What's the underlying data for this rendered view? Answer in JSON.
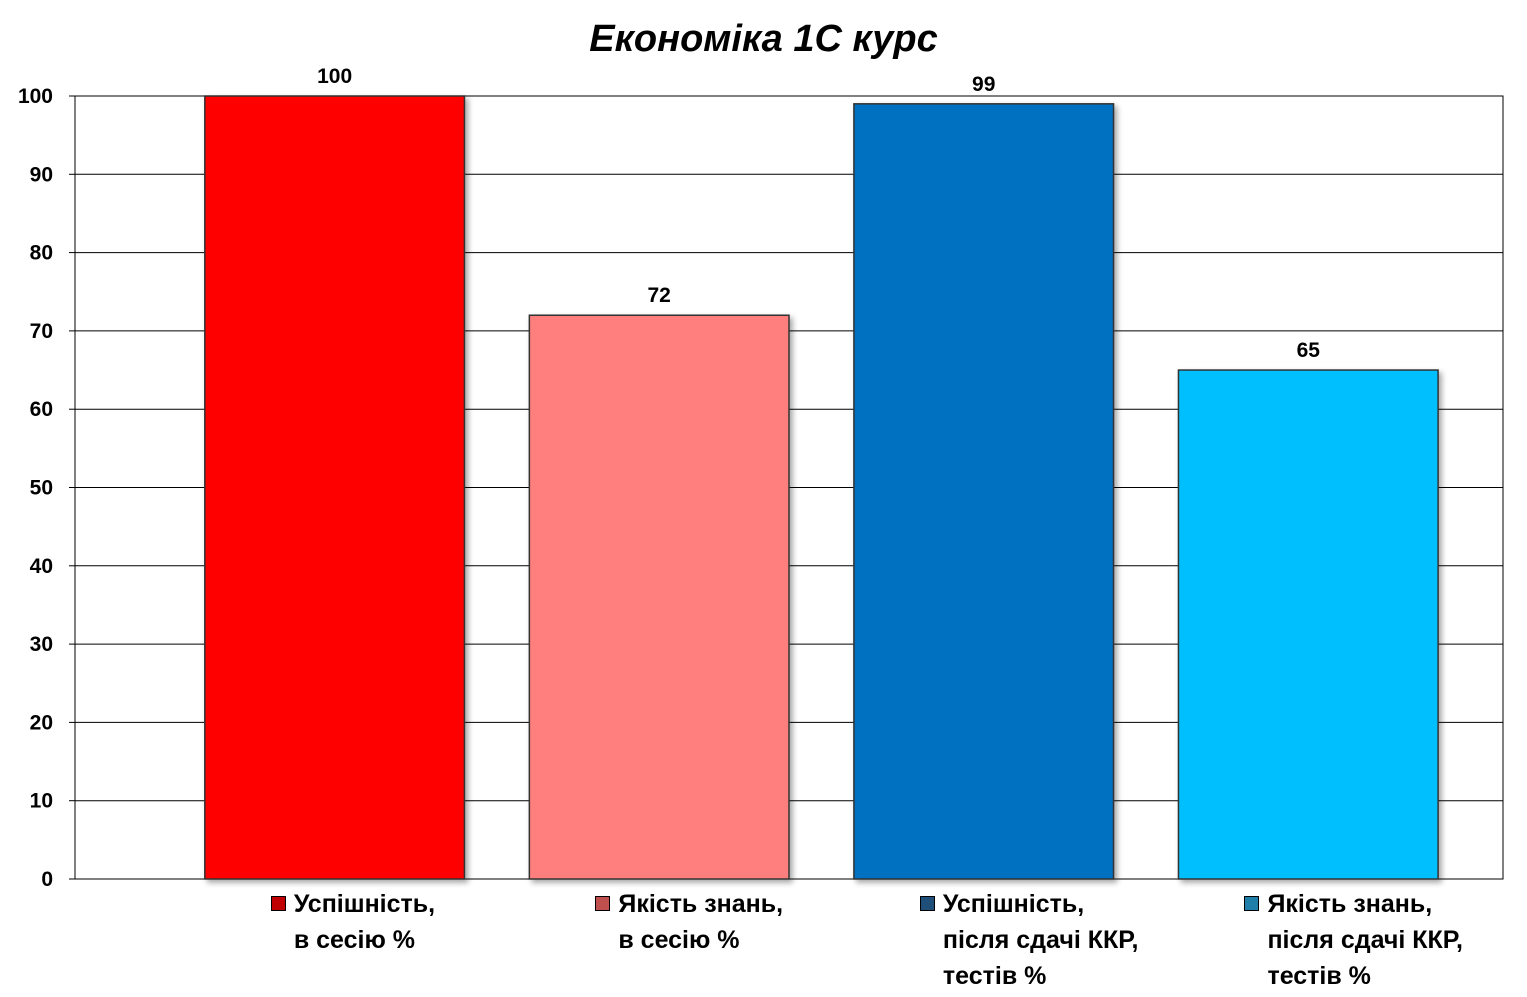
{
  "chart_data": {
    "type": "bar",
    "title": "Економіка 1С курс",
    "xlabel": "",
    "ylabel": "",
    "ylim": [
      0,
      100
    ],
    "yticks": [
      0,
      10,
      20,
      30,
      40,
      50,
      60,
      70,
      80,
      90,
      100
    ],
    "grid": true,
    "legend_position": "bottom",
    "categories": [
      "Успішність,\nв сесію %",
      "Якість знань,\nв сесію %",
      "Успішність,\nпісля сдачі ККР,\nтестів %",
      "Якість знань,\nпісля сдачі ККР,\nтестів %"
    ],
    "values": [
      100,
      72,
      99,
      65
    ],
    "colors": [
      "#ff0000",
      "#ff7f7f",
      "#0070c0",
      "#00bfff"
    ],
    "legend_swatch_colors": [
      "#c00000",
      "#c0504d",
      "#1f4e79",
      "#1f7fa8"
    ]
  }
}
